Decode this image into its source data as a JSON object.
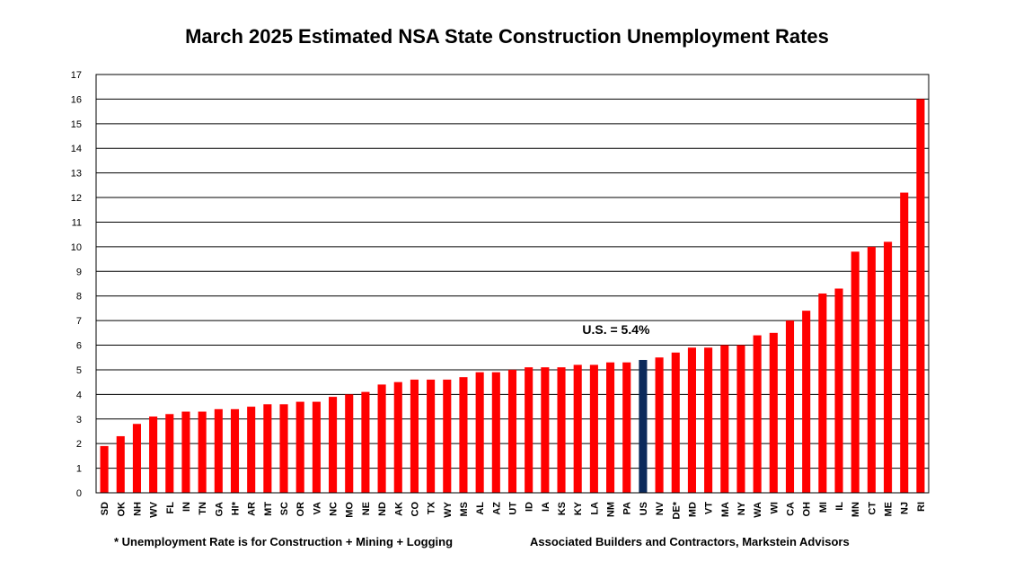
{
  "chart_data": {
    "type": "bar",
    "title": "March 2025 Estimated NSA State Construction Unemployment Rates",
    "xlabel": "",
    "ylabel": "",
    "ylim": [
      0,
      17
    ],
    "yticks": [
      0,
      1,
      2,
      3,
      4,
      5,
      6,
      7,
      8,
      9,
      10,
      11,
      12,
      13,
      14,
      15,
      16,
      17
    ],
    "grid": true,
    "categories": [
      "SD",
      "OK",
      "NH",
      "WV",
      "FL",
      "IN",
      "TN",
      "GA",
      "HI*",
      "AR",
      "MT",
      "SC",
      "OR",
      "VA",
      "NC",
      "MO",
      "NE",
      "ND",
      "AK",
      "CO",
      "TX",
      "WY",
      "MS",
      "AL",
      "AZ",
      "UT",
      "ID",
      "IA",
      "KS",
      "KY",
      "LA",
      "NM",
      "PA",
      "US",
      "NV",
      "DE*",
      "MD",
      "VT",
      "MA",
      "NY",
      "WA",
      "WI",
      "CA",
      "OH",
      "MI",
      "IL",
      "MN",
      "CT",
      "ME",
      "NJ",
      "RI"
    ],
    "values": [
      1.9,
      2.3,
      2.8,
      3.1,
      3.2,
      3.3,
      3.3,
      3.4,
      3.4,
      3.5,
      3.6,
      3.6,
      3.7,
      3.7,
      3.9,
      4.0,
      4.1,
      4.4,
      4.5,
      4.6,
      4.6,
      4.6,
      4.7,
      4.9,
      4.9,
      5.0,
      5.1,
      5.1,
      5.1,
      5.2,
      5.2,
      5.3,
      5.3,
      5.4,
      5.5,
      5.7,
      5.9,
      5.9,
      6.0,
      6.0,
      6.4,
      6.5,
      7.0,
      7.4,
      8.1,
      8.3,
      9.8,
      10.0,
      10.2,
      12.2,
      16.0
    ],
    "highlight_category": "US",
    "colors": {
      "bar": "#ff0000",
      "highlight": "#0b2a5b",
      "grid": "#000000"
    },
    "annotations": [
      {
        "text": "U.S. = 5.4%",
        "category": "US"
      }
    ]
  },
  "footnote": "* Unemployment Rate is for Construction + Mining + Logging",
  "source": "Associated Builders and Contractors, Markstein Advisors"
}
